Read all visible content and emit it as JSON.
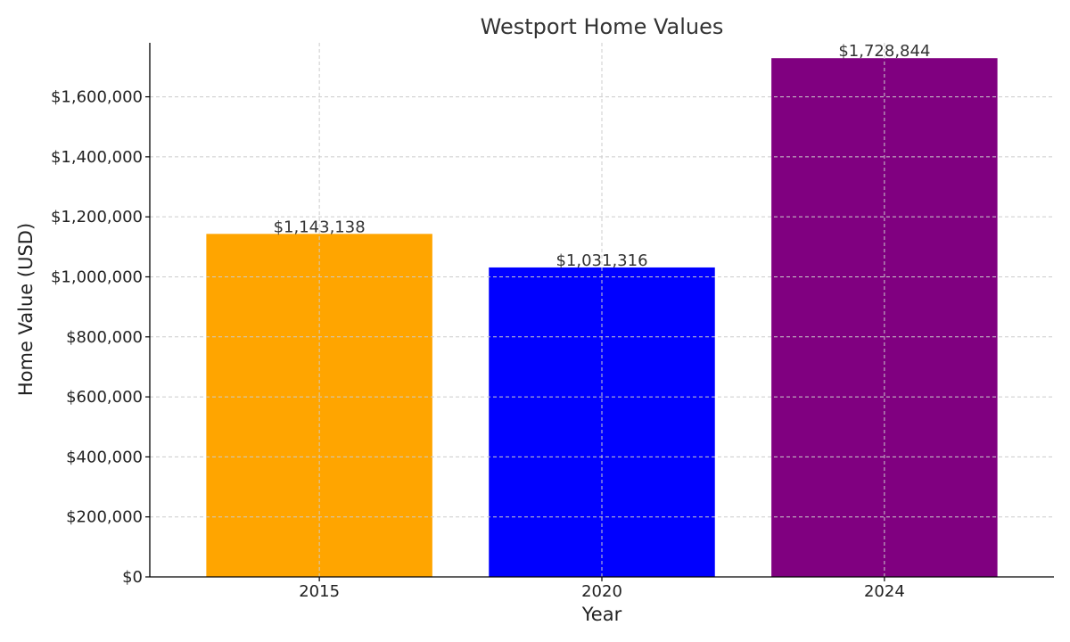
{
  "chart_data": {
    "type": "bar",
    "title": "Westport Home Values",
    "xlabel": "Year",
    "ylabel": "Home Value (USD)",
    "categories": [
      "2015",
      "2020",
      "2024"
    ],
    "values": [
      1143138,
      1031316,
      1728844
    ],
    "value_labels": [
      "$1,143,138",
      "$1,031,316",
      "$1,728,844"
    ],
    "colors": [
      "#FFA500",
      "#0000FF",
      "#800080"
    ],
    "ylim": [
      0,
      1780000
    ],
    "yticks": [
      0,
      200000,
      400000,
      600000,
      800000,
      1000000,
      1200000,
      1400000,
      1600000
    ],
    "ytick_labels": [
      "$0",
      "$200,000",
      "$400,000",
      "$600,000",
      "$800,000",
      "$1,000,000",
      "$1,200,000",
      "$1,400,000",
      "$1,600,000"
    ],
    "grid": true
  }
}
